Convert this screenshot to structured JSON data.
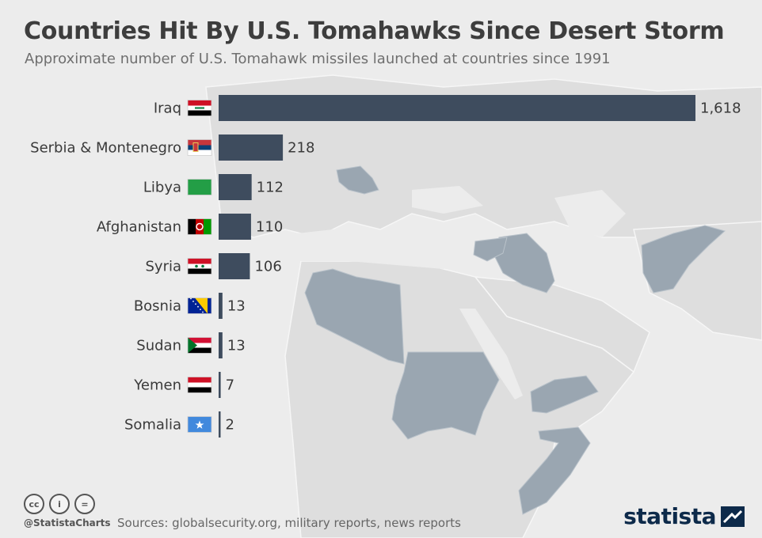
{
  "title": "Countries Hit By U.S. Tomahawks Since Desert Storm",
  "subtitle": "Approximate number of U.S. Tomahawk missiles launched at countries since 1991",
  "colors": {
    "bar": "#3e4c5e",
    "map_land": "#dcdcdc",
    "map_highlight": "#9aa6b1",
    "background": "#ececec",
    "brand": "#0d2a4a"
  },
  "chart_data": {
    "type": "bar",
    "orientation": "horizontal",
    "categories": [
      "Iraq",
      "Serbia & Montenegro",
      "Libya",
      "Afghanistan",
      "Syria",
      "Bosnia",
      "Sudan",
      "Yemen",
      "Somalia"
    ],
    "values": [
      1618,
      218,
      112,
      110,
      106,
      13,
      13,
      7,
      2
    ],
    "value_labels": [
      "1,618",
      "218",
      "112",
      "110",
      "106",
      "13",
      "13",
      "7",
      "2"
    ],
    "flags": [
      "iraq-flag-icon",
      "serbia-flag-icon",
      "libya-flag-icon",
      "afghanistan-flag-icon",
      "syria-flag-icon",
      "bosnia-flag-icon",
      "sudan-flag-icon",
      "yemen-flag-icon",
      "somalia-flag-icon"
    ],
    "xlim": [
      0,
      1618
    ],
    "grid": false,
    "legend": "none"
  },
  "footer": {
    "handle": "@StatistaCharts",
    "sources": "Sources: globalsecurity.org, military reports, news reports",
    "brand": "statista",
    "license_icons": [
      "cc-icon",
      "attribution-icon",
      "no-derivatives-icon"
    ]
  }
}
